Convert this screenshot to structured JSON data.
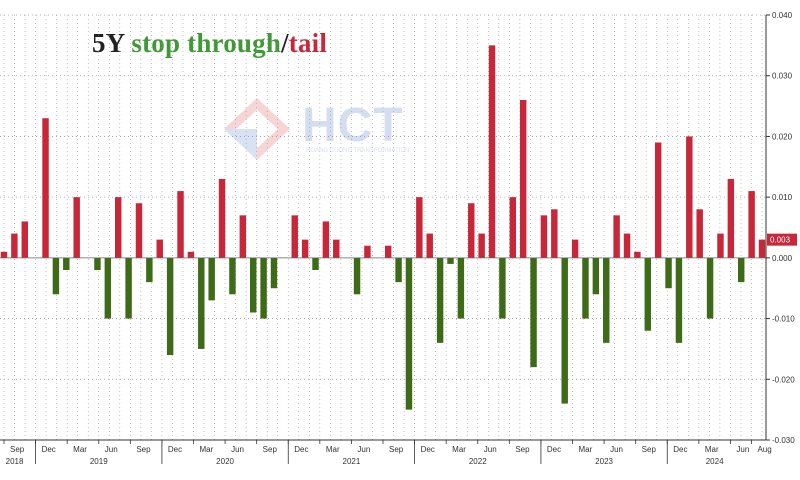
{
  "title": {
    "prefix": "5Y",
    "green_part": "stop through",
    "separator": "/",
    "red_part": "tail"
  },
  "watermark": {
    "text": "HCT",
    "subtext": "HOANG CUONG TRANSFORMATION"
  },
  "colors": {
    "positive": "#c8273a",
    "negative": "#3e6b17",
    "title_green": "#3f9a35",
    "grid": "#9a9a9a",
    "badge": "#c8273a"
  },
  "chart_data": {
    "type": "bar",
    "ylim": [
      -0.03,
      0.04
    ],
    "yticks": [
      "0.040",
      "0.030",
      "0.020",
      "0.010",
      "0.000",
      "-0.010",
      "-0.020",
      "-0.030"
    ],
    "ytick_values": [
      0.04,
      0.03,
      0.02,
      0.01,
      0.0,
      -0.01,
      -0.02,
      -0.03
    ],
    "last_value_label": "0.003",
    "values": [
      0.001,
      0.004,
      0.006,
      0.0,
      0.023,
      -0.006,
      -0.002,
      0.01,
      0.0,
      -0.002,
      -0.01,
      0.01,
      -0.01,
      0.009,
      -0.004,
      0.003,
      -0.016,
      0.011,
      0.001,
      -0.015,
      -0.007,
      0.013,
      -0.006,
      0.007,
      -0.009,
      -0.01,
      -0.005,
      0.0,
      0.007,
      0.003,
      -0.002,
      0.006,
      0.003,
      0.0,
      -0.006,
      0.002,
      0.0,
      0.002,
      -0.004,
      -0.025,
      0.01,
      0.004,
      -0.014,
      -0.001,
      -0.01,
      0.009,
      0.004,
      0.035,
      -0.01,
      0.01,
      0.026,
      -0.018,
      0.007,
      0.008,
      -0.024,
      0.003,
      -0.01,
      -0.006,
      -0.014,
      0.007,
      0.004,
      0.001,
      -0.012,
      0.019,
      -0.005,
      -0.014,
      0.02,
      0.008,
      -0.01,
      0.004,
      0.013,
      -0.004,
      0.011,
      0.003
    ],
    "month_labels": [
      "Sep",
      "Dec",
      "Mar",
      "Jun",
      "Sep",
      "Dec",
      "Mar",
      "Jun",
      "Sep",
      "Dec",
      "Mar",
      "Jun",
      "Sep",
      "Dec",
      "Mar",
      "Jun",
      "Sep",
      "Dec",
      "Mar",
      "Jun",
      "Sep",
      "Dec",
      "Mar",
      "Jun",
      "Aug"
    ],
    "year_labels": [
      "2018",
      "2019",
      "2020",
      "2021",
      "2022",
      "2023",
      "2024"
    ]
  }
}
